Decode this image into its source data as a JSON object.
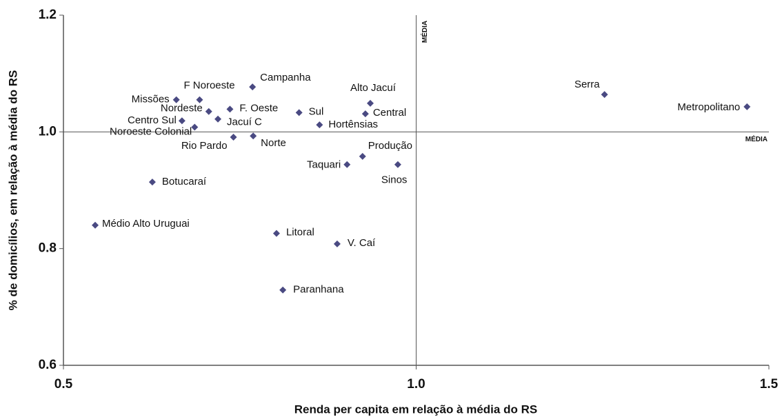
{
  "chart_data": {
    "type": "scatter",
    "xlabel": "Renda per capita em relação à média do RS",
    "ylabel": "% de domicílios, em relação à média do RS",
    "labels": [
      "Missões",
      "F Noroeste",
      "Campanha",
      "Nordeste",
      "F. Oeste",
      "Jacuí C",
      "Centro Sul",
      "Noroeste Colonial",
      "Rio Pardo",
      "Norte",
      "Sul",
      "Hortênsias",
      "Alto Jacuí",
      "Central",
      "Produção",
      "Taquari",
      "Sinos",
      "Botucaraí",
      "Médio Alto Uruguai",
      "Litoral",
      "V. Caí",
      "Paranhana",
      "Serra",
      "Metropolitano"
    ],
    "x": [
      0.66,
      0.693,
      0.768,
      0.706,
      0.736,
      0.719,
      0.668,
      0.686,
      0.741,
      0.769,
      0.834,
      0.863,
      0.935,
      0.928,
      0.924,
      0.902,
      0.974,
      0.626,
      0.545,
      0.802,
      0.888,
      0.811,
      1.267,
      1.469
    ],
    "values": [
      1.055,
      1.055,
      1.077,
      1.035,
      1.039,
      1.022,
      1.019,
      1.008,
      0.991,
      0.993,
      1.033,
      1.012,
      1.049,
      1.031,
      0.958,
      0.944,
      0.944,
      0.914,
      0.84,
      0.826,
      0.808,
      0.729,
      1.064,
      1.043
    ],
    "color": "#4a4a82",
    "xlim": [
      0.5,
      1.5
    ],
    "xticks": [
      0.5,
      {
        "value": 1.0,
        "label": "1.0"
      },
      1.5
    ],
    "ylim": [
      0.6,
      1.2
    ],
    "yticks": [
      0.6,
      0.8,
      {
        "value": 1.0,
        "label": "1.0"
      },
      1.2
    ],
    "annotations": [
      {
        "text": "MÉDIA",
        "x": 1.0
      },
      {
        "text": "MÉDIA",
        "y": 1.0
      }
    ]
  }
}
